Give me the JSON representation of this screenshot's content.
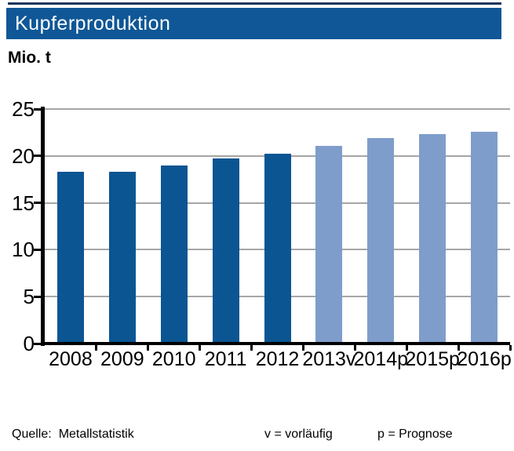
{
  "header": {
    "title": "Kupferproduktion",
    "banner_color": "#0f5796",
    "top_line_color": "#17365d"
  },
  "chart_data": {
    "type": "bar",
    "title": "Kupferproduktion",
    "ylabel": "Mio. t",
    "xlabel": "",
    "categories": [
      "2008",
      "2009",
      "2010",
      "2011",
      "2012",
      "2013v",
      "2014p",
      "2015p",
      "2016p"
    ],
    "values": [
      18.3,
      18.3,
      19.0,
      19.7,
      20.2,
      21.1,
      21.9,
      22.3,
      22.6
    ],
    "forecast_start_index": 5,
    "colors": {
      "actual": "#0a5592",
      "forecast": "#7f9dcb",
      "gridline": "#a6a6a6",
      "axis": "#000000"
    },
    "ylim": [
      0,
      25
    ],
    "yticks": [
      0,
      5,
      10,
      15,
      20,
      25
    ],
    "grid": true,
    "legend": "none"
  },
  "footer": {
    "source_label": "Quelle:",
    "source_value": "Metallstatistik",
    "note_v": "v = vorläufig",
    "note_p": "p = Prognose"
  }
}
